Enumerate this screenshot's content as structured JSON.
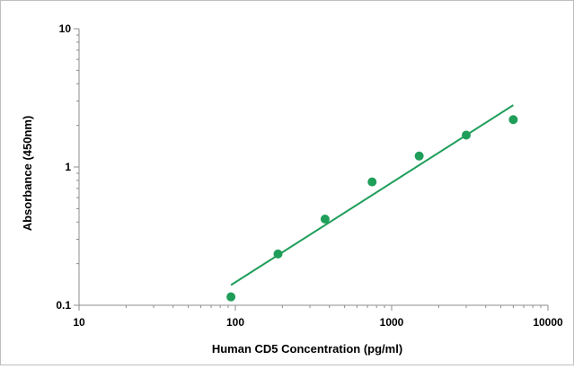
{
  "chart_data": {
    "type": "scatter",
    "title": "",
    "xlabel": "Human CD5 Concentration (pg/ml)",
    "ylabel": "Absorbance (450nm)",
    "x_scale": "log",
    "y_scale": "log",
    "xlim": [
      10,
      10000
    ],
    "ylim": [
      0.1,
      10
    ],
    "x_ticks": [
      {
        "value": 10,
        "label": "10"
      },
      {
        "value": 100,
        "label": "100"
      },
      {
        "value": 1000,
        "label": "1000"
      },
      {
        "value": 10000,
        "label": "10000"
      }
    ],
    "y_ticks": [
      {
        "value": 0.1,
        "label": "0.1"
      },
      {
        "value": 1,
        "label": "1"
      },
      {
        "value": 10,
        "label": "10"
      }
    ],
    "grid": false,
    "legend": "none",
    "series": [
      {
        "color": "#1f9e5a",
        "x": [
          93.75,
          187.5,
          375,
          750,
          1500,
          3000,
          6000
        ],
        "y": [
          0.115,
          0.235,
          0.42,
          0.78,
          1.2,
          1.7,
          2.2
        ]
      }
    ],
    "trendline": {
      "color": "#1f9e5a",
      "x": [
        93.75,
        6000
      ],
      "y": [
        0.14,
        2.8
      ]
    }
  }
}
